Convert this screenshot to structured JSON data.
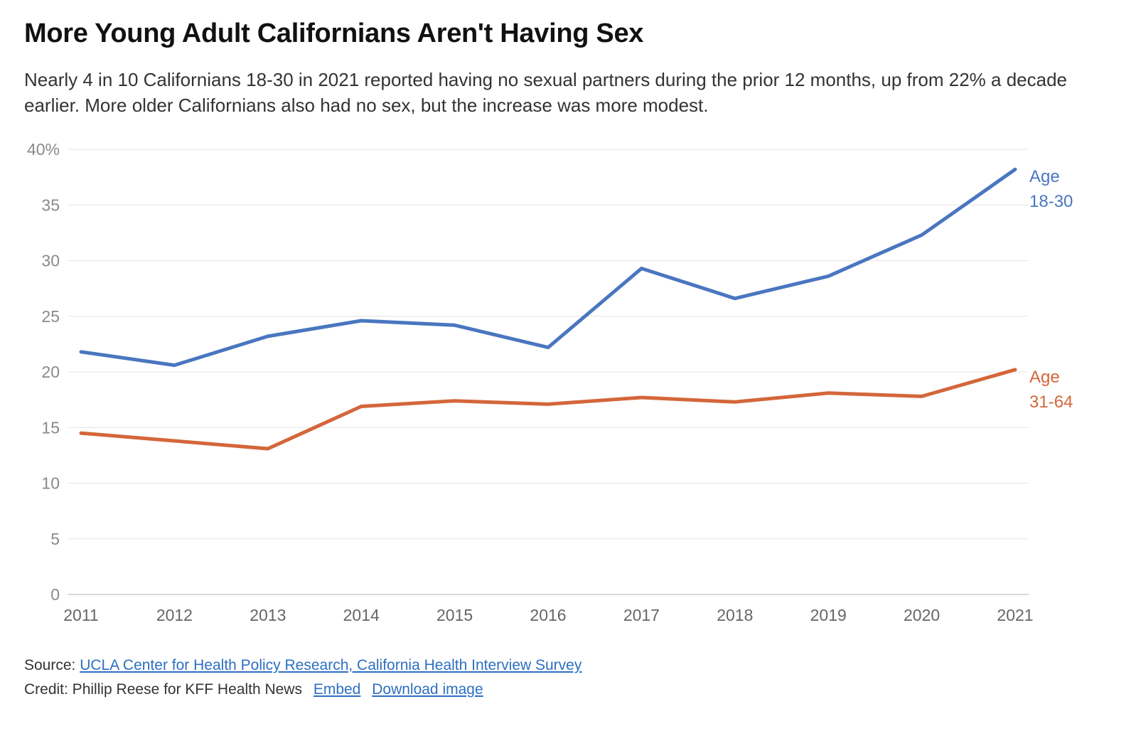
{
  "header": {
    "title": "More Young Adult Californians Aren't Having Sex",
    "subtitle": "Nearly 4 in 10 Californians 18-30 in 2021 reported having no sexual partners during the prior 12 months, up from 22% a decade earlier. More older Californians also had no sex, but the increase was more modest."
  },
  "footer": {
    "source_prefix": "Source: ",
    "source_link": "UCLA Center for Health Policy Research, California Health Interview Survey",
    "credit_text": "Credit: Phillip Reese for KFF Health News",
    "embed_link": "Embed",
    "download_link": "Download image"
  },
  "chart_data": {
    "type": "line",
    "title": "More Young Adult Californians Aren't Having Sex",
    "xlabel": "",
    "ylabel": "",
    "x": [
      "2011",
      "2012",
      "2013",
      "2014",
      "2015",
      "2016",
      "2017",
      "2018",
      "2019",
      "2020",
      "2021"
    ],
    "ylim": [
      0,
      40
    ],
    "yticks": [
      0,
      5,
      10,
      15,
      20,
      25,
      30,
      35,
      40
    ],
    "ytick_labels": [
      "0",
      "5",
      "10",
      "15",
      "20",
      "25",
      "30",
      "35",
      "40%"
    ],
    "grid": true,
    "legend": "direct labels at line ends",
    "series": [
      {
        "name": "Age 18-30",
        "label_lines": [
          "Age",
          "18-30"
        ],
        "color": "#4a76c0",
        "values": [
          21.8,
          20.6,
          23.2,
          24.6,
          24.2,
          22.2,
          29.3,
          26.6,
          28.6,
          32.3,
          38.2
        ]
      },
      {
        "name": "Age 31-64",
        "label_lines": [
          "Age",
          "31-64"
        ],
        "color": "#d4663a",
        "values": [
          14.5,
          13.8,
          13.1,
          16.9,
          17.4,
          17.1,
          17.7,
          17.3,
          18.1,
          17.8,
          20.2
        ]
      }
    ]
  }
}
